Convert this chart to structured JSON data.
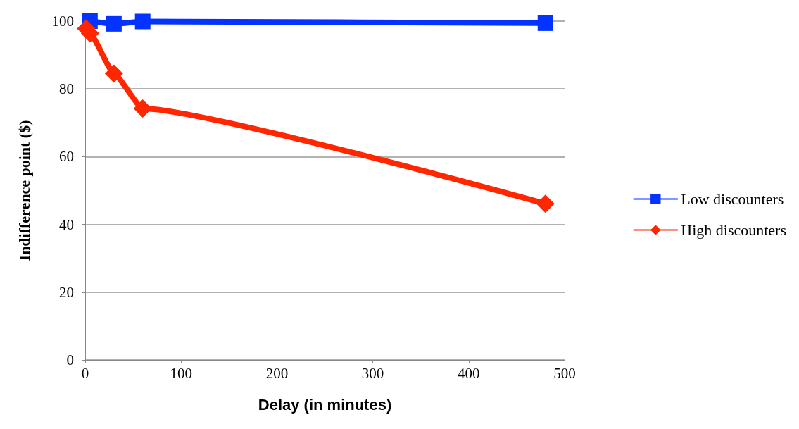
{
  "chart_data": {
    "type": "line",
    "xlabel": "Delay (in minutes)",
    "ylabel": "Indifference point ($)",
    "xlim": [
      0,
      500
    ],
    "xticks": [
      0,
      100,
      200,
      300,
      400,
      500
    ],
    "ylim": [
      0,
      100
    ],
    "yticks": [
      0,
      20,
      40,
      60,
      80,
      100
    ],
    "grid": "y",
    "legend": "right",
    "line_style": "solid",
    "series": [
      {
        "name": "Low discounters",
        "color": "#0433ff",
        "marker": "square",
        "x": [
          5,
          30,
          60,
          480
        ],
        "values": [
          100,
          99.2,
          99.9,
          99.4
        ]
      },
      {
        "name": "High discounters",
        "color": "#ff2600",
        "marker": "diamond",
        "x": [
          1,
          5,
          30,
          60,
          480
        ],
        "values": [
          97.8,
          96.4,
          84.5,
          74.2,
          46.1
        ]
      }
    ]
  }
}
